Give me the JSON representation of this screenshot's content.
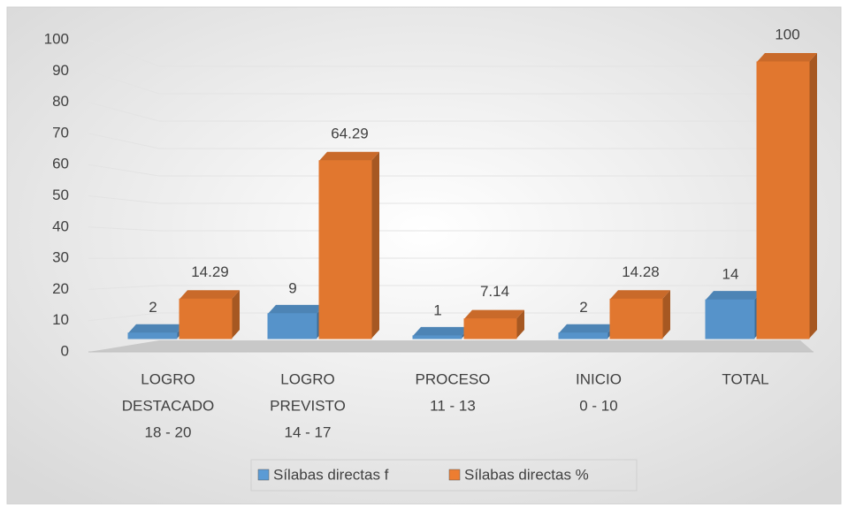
{
  "chart_data": {
    "type": "bar3d",
    "categories": [
      [
        "LOGRO",
        "DESTACADO",
        "18 - 20"
      ],
      [
        "LOGRO",
        "PREVISTO",
        "14 - 17"
      ],
      [
        "PROCESO",
        "11 - 13"
      ],
      [
        "INICIO",
        "0 - 10"
      ],
      [
        "TOTAL"
      ]
    ],
    "series": [
      {
        "name": "Sílabas directas f",
        "color": "#5b9bd5",
        "values": [
          2,
          9,
          1,
          2,
          14
        ]
      },
      {
        "name": "Sílabas directas %",
        "color": "#ed7d31",
        "values": [
          14.29,
          64.29,
          7.14,
          14.28,
          100
        ]
      }
    ],
    "ylim": [
      0,
      100
    ],
    "yticks": [
      0,
      10,
      20,
      30,
      40,
      50,
      60,
      70,
      80,
      90,
      100
    ],
    "grid": true,
    "legend": "bottom"
  }
}
